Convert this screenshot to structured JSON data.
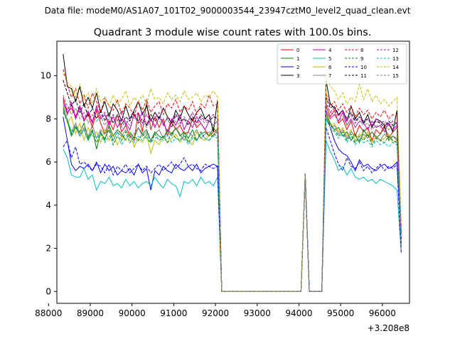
{
  "figure": {
    "suptitle": "Data file: modeM0/AS1A07_101T02_9000003544_23947cztM0_level2_quad_clean.evt"
  },
  "chart_data": {
    "type": "line",
    "title": "Quadrant 3 module wise count rates with 100.0s bins.",
    "xlabel": "",
    "ylabel": "",
    "x_offset_label": "+3.208e8",
    "xlim": [
      88200,
      96650
    ],
    "ylim": [
      -0.55,
      11.6
    ],
    "x_ticks": [
      88000,
      89000,
      90000,
      91000,
      92000,
      93000,
      94000,
      95000,
      96000
    ],
    "y_ticks": [
      0,
      2,
      4,
      6,
      8,
      10
    ],
    "grid": false,
    "legend_position": "top-right",
    "legend_columns": 4,
    "x_start": 88350,
    "bin_width": 100,
    "gap_segments": [
      {
        "x": [
          92150,
          92250,
          92350,
          92450,
          92550,
          92650,
          92750,
          92850,
          92950,
          93050,
          93150,
          93250,
          93350,
          93450,
          93550,
          93650,
          93750,
          93850,
          93950,
          94050
        ],
        "all_zero": true
      },
      {
        "x": [
          94250,
          94350,
          94450,
          94550
        ],
        "all_zero": true
      }
    ],
    "spikes": [
      {
        "x": 94150,
        "peak": 5.4
      }
    ],
    "series": [
      {
        "name": "0",
        "color": "#ff0000",
        "style": "solid",
        "values": [
          9.0,
          8.3,
          8.5,
          8.1,
          8.6,
          7.9,
          8.2,
          7.6,
          8.4,
          7.8,
          7.3,
          7.9,
          7.5,
          8.2,
          7.4,
          7.7,
          7.2,
          7.0,
          8.3,
          7.4,
          8.8,
          7.5,
          8.1,
          7.6,
          8.0,
          7.2,
          7.9,
          7.5,
          7.7,
          7.3,
          7.4,
          8.0,
          7.6,
          7.8,
          7.5,
          7.2,
          7.4,
          7.5
        ],
        "post_values": [
          8.6,
          8.1,
          8.4,
          7.8,
          8.0,
          7.5,
          7.9,
          7.2,
          7.7,
          7.4,
          7.6,
          7.0,
          7.5,
          7.3,
          7.7,
          7.1,
          7.4,
          7.6
        ]
      },
      {
        "name": "1",
        "color": "#008000",
        "style": "solid",
        "values": [
          8.5,
          7.9,
          7.2,
          7.6,
          7.4,
          7.8,
          7.1,
          7.5,
          6.6,
          7.4,
          7.0,
          7.7,
          7.2,
          7.5,
          7.3,
          7.0,
          7.4,
          7.1,
          7.6,
          7.3,
          7.5,
          7.0,
          7.4,
          7.2,
          7.1,
          7.5,
          7.3,
          7.6,
          7.2,
          7.4,
          7.1,
          7.5,
          7.0,
          7.3,
          7.4,
          7.2,
          7.6,
          7.3
        ],
        "post_values": [
          8.3,
          7.8,
          7.5,
          7.6,
          7.2,
          7.4,
          7.0,
          7.3,
          6.9,
          7.5,
          7.2,
          7.4,
          7.1,
          7.3,
          7.6,
          7.0,
          7.2,
          7.1
        ]
      },
      {
        "name": "2",
        "color": "#0000ff",
        "style": "solid",
        "values": [
          8.1,
          7.0,
          5.9,
          5.6,
          5.8,
          5.7,
          5.9,
          5.6,
          6.0,
          5.5,
          5.9,
          5.6,
          5.8,
          5.4,
          5.6,
          5.5,
          5.7,
          5.4,
          5.9,
          5.5,
          5.7,
          4.7,
          5.6,
          5.4,
          5.8,
          5.6,
          5.5,
          5.9,
          5.7,
          5.6,
          5.8,
          5.6,
          5.9,
          5.5,
          5.7,
          5.8,
          5.9,
          5.8
        ],
        "post_values": [
          8.2,
          7.6,
          7.0,
          6.6,
          6.4,
          6.3,
          6.0,
          5.6,
          6.1,
          5.8,
          5.9,
          5.7,
          5.6,
          5.8,
          5.9,
          5.7,
          5.8,
          6.0
        ]
      },
      {
        "name": "3",
        "color": "#000000",
        "style": "solid",
        "values": [
          11.0,
          9.5,
          9.4,
          8.8,
          9.5,
          8.6,
          9.0,
          8.5,
          9.2,
          8.3,
          8.8,
          8.1,
          8.7,
          8.4,
          7.9,
          8.6,
          8.0,
          8.4,
          8.8,
          8.2,
          8.6,
          7.9,
          8.3,
          8.0,
          8.5,
          8.1,
          7.8,
          8.4,
          8.0,
          8.6,
          8.2,
          7.9,
          8.3,
          8.5,
          8.0,
          8.2,
          7.4,
          8.9
        ],
        "post_values": [
          9.8,
          8.7,
          8.5,
          8.2,
          8.4,
          7.9,
          8.6,
          8.0,
          8.3,
          7.8,
          8.2,
          7.6,
          8.0,
          7.9,
          7.7,
          7.8,
          7.4,
          8.4
        ]
      },
      {
        "name": "4",
        "color": "#bf00bf",
        "style": "solid",
        "values": [
          8.8,
          8.2,
          8.7,
          8.0,
          8.5,
          7.9,
          8.3,
          7.8,
          8.6,
          8.0,
          8.2,
          7.7,
          8.1,
          7.6,
          8.0,
          7.8,
          7.5,
          8.2,
          7.9,
          8.3,
          7.7,
          8.0,
          7.6,
          8.1,
          7.8,
          7.4,
          8.0,
          7.7,
          8.2,
          7.5,
          7.9,
          7.6,
          8.1,
          7.8,
          7.5,
          7.9,
          7.7,
          7.9
        ],
        "post_values": [
          8.4,
          8.0,
          8.2,
          7.9,
          8.3,
          7.7,
          8.0,
          7.6,
          7.9,
          7.8,
          7.5,
          7.9,
          7.6,
          7.7,
          7.4,
          7.8,
          7.5,
          7.7
        ]
      },
      {
        "name": "5",
        "color": "#00bfbf",
        "style": "solid",
        "values": [
          6.6,
          6.2,
          5.4,
          5.3,
          5.3,
          5.7,
          5.2,
          5.4,
          4.7,
          5.1,
          5.0,
          5.3,
          4.9,
          5.0,
          4.8,
          5.2,
          4.9,
          5.1,
          4.8,
          5.0,
          5.1,
          4.9,
          5.3,
          5.0,
          4.8,
          5.2,
          5.0,
          4.9,
          4.4,
          5.1,
          5.0,
          5.2,
          4.9,
          5.3,
          5.0,
          5.1,
          4.9,
          5.3
        ],
        "post_values": [
          7.0,
          6.5,
          6.1,
          5.6,
          5.8,
          5.4,
          5.7,
          5.3,
          5.2,
          5.3,
          5.1,
          5.2,
          5.0,
          5.2,
          5.1,
          5.0,
          4.9,
          4.7
        ]
      },
      {
        "name": "6",
        "color": "#bfbf00",
        "style": "solid",
        "values": [
          8.7,
          7.8,
          8.1,
          7.3,
          7.8,
          7.0,
          7.6,
          7.2,
          7.4,
          6.9,
          7.5,
          7.0,
          7.3,
          6.8,
          7.2,
          7.0,
          7.4,
          6.7,
          7.1,
          6.9,
          7.3,
          6.4,
          7.0,
          6.8,
          7.2,
          6.9,
          7.1,
          7.3,
          6.9,
          7.2,
          7.0,
          6.8,
          7.4,
          7.1,
          7.0,
          7.3,
          7.2,
          7.6
        ],
        "post_values": [
          8.2,
          7.7,
          7.8,
          7.4,
          7.6,
          7.2,
          7.5,
          7.0,
          7.3,
          7.1,
          7.4,
          6.9,
          7.2,
          7.0,
          7.1,
          7.3,
          6.9,
          7.0
        ]
      },
      {
        "name": "7",
        "color": "#7f7f7f",
        "style": "solid",
        "values": [
          8.4,
          7.9,
          7.4,
          7.8,
          7.3,
          7.6,
          7.2,
          7.7,
          7.1,
          7.5,
          7.3,
          7.6,
          7.0,
          7.4,
          7.2,
          7.5,
          7.1,
          7.3,
          7.6,
          7.2,
          7.4,
          7.0,
          7.3,
          7.5,
          7.1,
          7.4,
          7.2,
          7.6,
          7.3,
          7.0,
          7.4,
          7.2,
          7.5,
          7.1,
          7.3,
          7.4,
          7.2,
          7.5
        ],
        "post_values": [
          8.0,
          7.6,
          7.7,
          7.3,
          7.5,
          7.1,
          7.4,
          7.2,
          7.0,
          7.3,
          7.1,
          7.4,
          7.2,
          7.0,
          7.3,
          7.1,
          7.2,
          7.0
        ]
      },
      {
        "name": "8",
        "color": "#ff0000",
        "style": "dashed",
        "values": [
          10.3,
          9.6,
          9.0,
          9.4,
          8.7,
          9.1,
          8.5,
          9.2,
          8.8,
          8.3,
          9.0,
          8.6,
          8.4,
          8.9,
          8.2,
          8.7,
          8.5,
          8.1,
          8.8,
          8.4,
          8.9,
          8.3,
          8.6,
          8.8,
          8.2,
          8.7,
          8.5,
          8.9,
          8.3,
          8.6,
          8.4,
          8.8,
          8.2,
          8.7,
          8.5,
          9.1,
          8.6,
          8.7
        ],
        "post_values": [
          9.2,
          8.6,
          8.8,
          8.4,
          8.7,
          8.3,
          8.6,
          8.1,
          8.5,
          8.2,
          8.4,
          8.0,
          8.3,
          8.1,
          8.4,
          8.0,
          8.2,
          8.1
        ]
      },
      {
        "name": "9",
        "color": "#008000",
        "style": "dashed",
        "values": [
          8.3,
          7.9,
          7.3,
          7.7,
          7.2,
          7.5,
          7.0,
          7.4,
          6.9,
          7.3,
          7.1,
          7.5,
          6.8,
          7.2,
          7.0,
          7.4,
          6.9,
          7.2,
          7.0,
          7.3,
          7.1,
          6.9,
          7.3,
          7.0,
          7.2,
          6.9,
          7.4,
          7.1,
          7.0,
          7.3,
          6.9,
          7.2,
          7.0,
          7.4,
          7.1,
          7.0,
          7.3,
          7.2
        ],
        "post_values": [
          8.1,
          7.7,
          7.5,
          7.2,
          7.4,
          7.0,
          7.3,
          6.9,
          7.2,
          7.0,
          7.3,
          6.8,
          7.1,
          7.0,
          6.9,
          7.2,
          7.0,
          6.9
        ]
      },
      {
        "name": "10",
        "color": "#0000ff",
        "style": "dashed",
        "values": [
          6.7,
          7.0,
          6.2,
          6.7,
          5.9,
          6.0,
          5.8,
          5.6,
          5.9,
          5.8,
          5.5,
          5.9,
          5.4,
          5.8,
          5.6,
          5.9,
          5.5,
          5.7,
          5.9,
          5.6,
          5.8,
          5.5,
          5.7,
          5.9,
          5.6,
          5.8,
          6.0,
          5.7,
          5.9,
          6.2,
          5.8,
          5.9,
          5.7,
          5.6,
          5.9,
          5.8,
          5.7,
          5.8
        ],
        "post_values": [
          7.6,
          7.0,
          6.4,
          5.9,
          5.6,
          6.2,
          5.8,
          5.7,
          6.0,
          5.6,
          5.8,
          5.5,
          5.7,
          5.9,
          5.6,
          5.8,
          5.7,
          5.9
        ]
      },
      {
        "name": "11",
        "color": "#000000",
        "style": "dashed",
        "values": [
          9.8,
          9.2,
          8.6,
          8.9,
          8.3,
          8.7,
          8.1,
          8.5,
          8.0,
          8.4,
          7.9,
          8.3,
          7.8,
          8.2,
          7.7,
          8.1,
          7.9,
          8.3,
          7.8,
          8.0,
          7.7,
          8.2,
          7.9,
          8.1,
          7.8,
          8.0,
          7.6,
          8.2,
          7.9,
          8.0,
          7.7,
          8.1,
          7.8,
          8.2,
          8.0,
          7.9,
          8.1,
          8.0
        ],
        "post_values": [
          9.0,
          8.5,
          8.6,
          8.2,
          8.4,
          8.0,
          8.3,
          7.9,
          8.1,
          7.8,
          8.0,
          7.7,
          7.9,
          7.8,
          7.6,
          7.9,
          7.7,
          7.8
        ]
      },
      {
        "name": "12",
        "color": "#bf00bf",
        "style": "dashed",
        "values": [
          8.9,
          8.4,
          8.8,
          8.1,
          8.6,
          8.0,
          8.4,
          7.9,
          8.5,
          8.1,
          8.3,
          7.8,
          8.2,
          7.9,
          8.4,
          7.7,
          8.1,
          8.0,
          8.3,
          7.8,
          8.2,
          7.9,
          8.0,
          8.3,
          7.7,
          8.1,
          7.9,
          8.2,
          7.8,
          8.0,
          7.9,
          8.3,
          7.8,
          8.1,
          7.9,
          8.0,
          8.2,
          8.0
        ],
        "post_values": [
          8.7,
          8.3,
          8.5,
          8.1,
          8.4,
          7.9,
          8.2,
          7.8,
          8.1,
          7.9,
          8.0,
          7.7,
          8.0,
          7.8,
          7.9,
          7.7,
          7.9,
          7.8
        ]
      },
      {
        "name": "13",
        "color": "#00bfbf",
        "style": "dashed",
        "values": [
          8.6,
          8.0,
          7.4,
          7.6,
          7.2,
          7.5,
          7.0,
          7.4,
          7.1,
          7.3,
          6.9,
          7.2,
          7.0,
          7.4,
          6.8,
          7.1,
          7.3,
          6.9,
          7.2,
          7.0,
          7.3,
          6.9,
          7.1,
          7.2,
          7.0,
          7.3,
          6.9,
          7.1,
          7.0,
          7.2,
          6.8,
          7.1,
          7.0,
          7.3,
          7.1,
          7.0,
          7.2,
          7.1
        ],
        "post_values": [
          8.0,
          7.6,
          7.4,
          7.1,
          7.3,
          6.9,
          7.2,
          6.8,
          7.1,
          6.9,
          7.0,
          6.7,
          7.0,
          6.8,
          6.9,
          6.7,
          6.9,
          6.8
        ]
      },
      {
        "name": "14",
        "color": "#bfbf00",
        "style": "dashed",
        "values": [
          10.1,
          9.7,
          9.5,
          9.0,
          9.6,
          8.9,
          9.2,
          8.7,
          9.4,
          8.8,
          9.0,
          8.6,
          9.1,
          8.7,
          8.9,
          9.3,
          8.6,
          9.0,
          8.8,
          9.1,
          8.7,
          9.4,
          8.9,
          9.0,
          8.7,
          9.2,
          8.9,
          9.1,
          8.8,
          9.3,
          8.9,
          9.0,
          9.2,
          8.8,
          9.1,
          9.0,
          9.3,
          9.0
        ],
        "post_values": [
          10.1,
          9.5,
          9.3,
          8.9,
          9.2,
          8.7,
          9.0,
          8.8,
          9.6,
          8.9,
          9.4,
          8.8,
          9.1,
          8.7,
          8.9,
          8.6,
          8.8,
          9.0
        ]
      },
      {
        "name": "15",
        "color": "#7f7f7f",
        "style": "dashed",
        "values": [
          9.1,
          8.6,
          8.2,
          8.5,
          8.0,
          8.3,
          7.8,
          8.2,
          7.9,
          8.1,
          7.7,
          8.0,
          7.8,
          8.2,
          7.6,
          7.9,
          7.7,
          8.1,
          7.8,
          7.9,
          7.6,
          8.0,
          7.7,
          7.9,
          7.8,
          8.0,
          7.6,
          7.9,
          7.7,
          8.1,
          7.8,
          7.9,
          7.7,
          8.0,
          7.8,
          7.9,
          7.7,
          7.9
        ],
        "post_values": [
          8.8,
          8.3,
          8.2,
          7.9,
          8.1,
          7.7,
          8.0,
          7.6,
          7.9,
          7.7,
          7.8,
          7.5,
          7.7,
          7.6,
          7.8,
          7.5,
          7.7,
          7.6
        ]
      }
    ]
  }
}
